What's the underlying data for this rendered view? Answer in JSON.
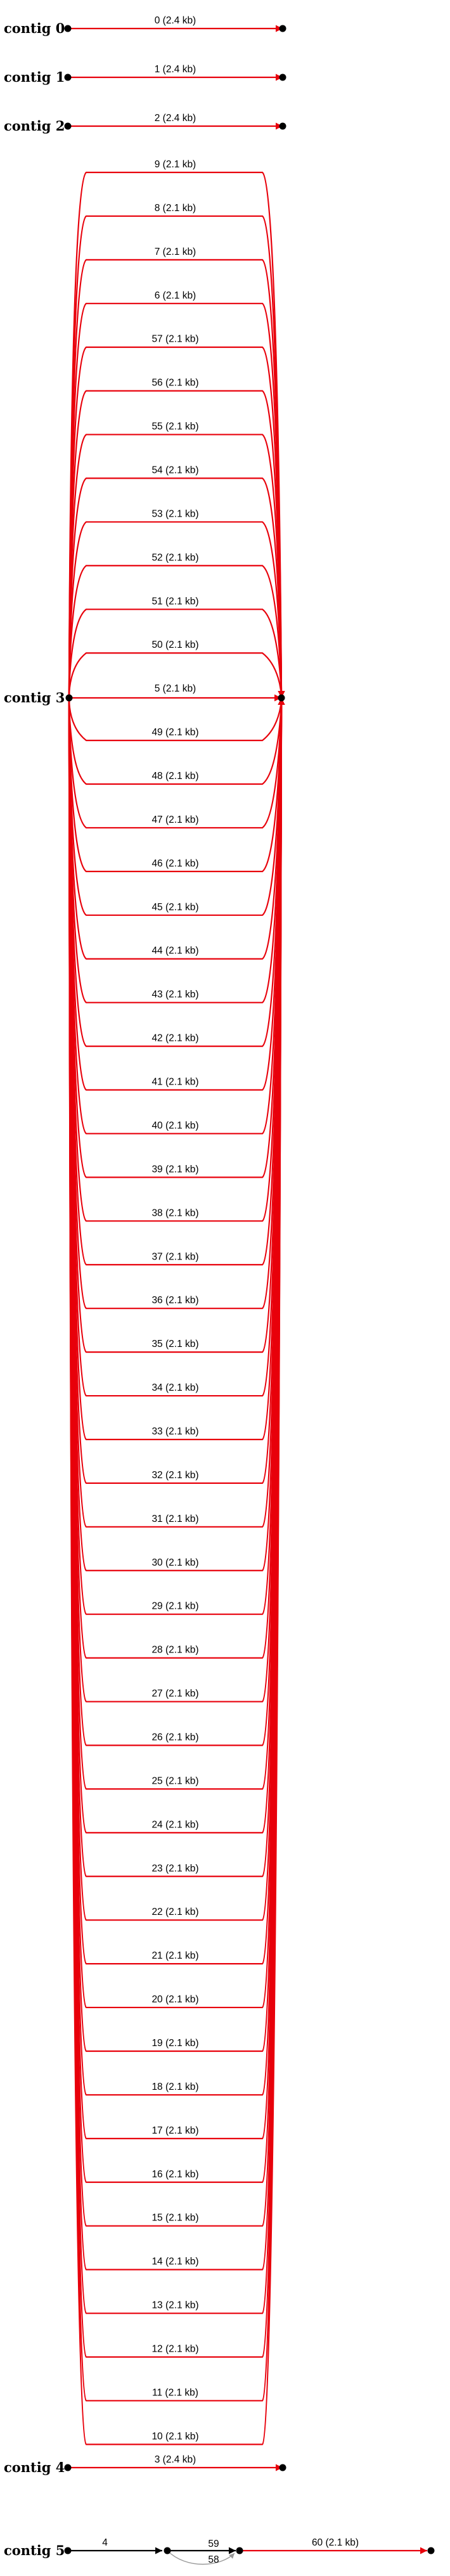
{
  "contigs": [
    {
      "label": "contig 0",
      "edges": [
        "0 (2.4 kb)"
      ]
    },
    {
      "label": "contig 1",
      "edges": [
        "1 (2.4 kb)"
      ]
    },
    {
      "label": "contig 2",
      "edges": [
        "2 (2.4 kb)"
      ]
    },
    {
      "label": "contig 3",
      "edges": [
        "9 (2.1 kb)",
        "8 (2.1 kb)",
        "7 (2.1 kb)",
        "6 (2.1 kb)",
        "57 (2.1 kb)",
        "56 (2.1 kb)",
        "55 (2.1 kb)",
        "54 (2.1 kb)",
        "53 (2.1 kb)",
        "52 (2.1 kb)",
        "51 (2.1 kb)",
        "50 (2.1 kb)",
        "5 (2.1 kb)",
        "49 (2.1 kb)",
        "48 (2.1 kb)",
        "47 (2.1 kb)",
        "46 (2.1 kb)",
        "45 (2.1 kb)",
        "44 (2.1 kb)",
        "43 (2.1 kb)",
        "42 (2.1 kb)",
        "41 (2.1 kb)",
        "40 (2.1 kb)",
        "39 (2.1 kb)",
        "38 (2.1 kb)",
        "37 (2.1 kb)",
        "36 (2.1 kb)",
        "35 (2.1 kb)",
        "34 (2.1 kb)",
        "33 (2.1 kb)",
        "32 (2.1 kb)",
        "31 (2.1 kb)",
        "30 (2.1 kb)",
        "29 (2.1 kb)",
        "28 (2.1 kb)",
        "27 (2.1 kb)",
        "26 (2.1 kb)",
        "25 (2.1 kb)",
        "24 (2.1 kb)",
        "23 (2.1 kb)",
        "22 (2.1 kb)",
        "21 (2.1 kb)",
        "20 (2.1 kb)",
        "19 (2.1 kb)",
        "18 (2.1 kb)",
        "17 (2.1 kb)",
        "16 (2.1 kb)",
        "15 (2.1 kb)",
        "14 (2.1 kb)",
        "13 (2.1 kb)",
        "12 (2.1 kb)",
        "11 (2.1 kb)",
        "10 (2.1 kb)"
      ]
    },
    {
      "label": "contig 4",
      "edges": [
        "3 (2.4 kb)"
      ]
    },
    {
      "label": "contig 5",
      "edges": [
        "4",
        "59",
        "58",
        "60 (2.1 kb)"
      ]
    }
  ],
  "colors": {
    "edge": "#e8000b",
    "short_edge": "#000000",
    "tiny_edge": "#999999",
    "node": "#000000"
  }
}
